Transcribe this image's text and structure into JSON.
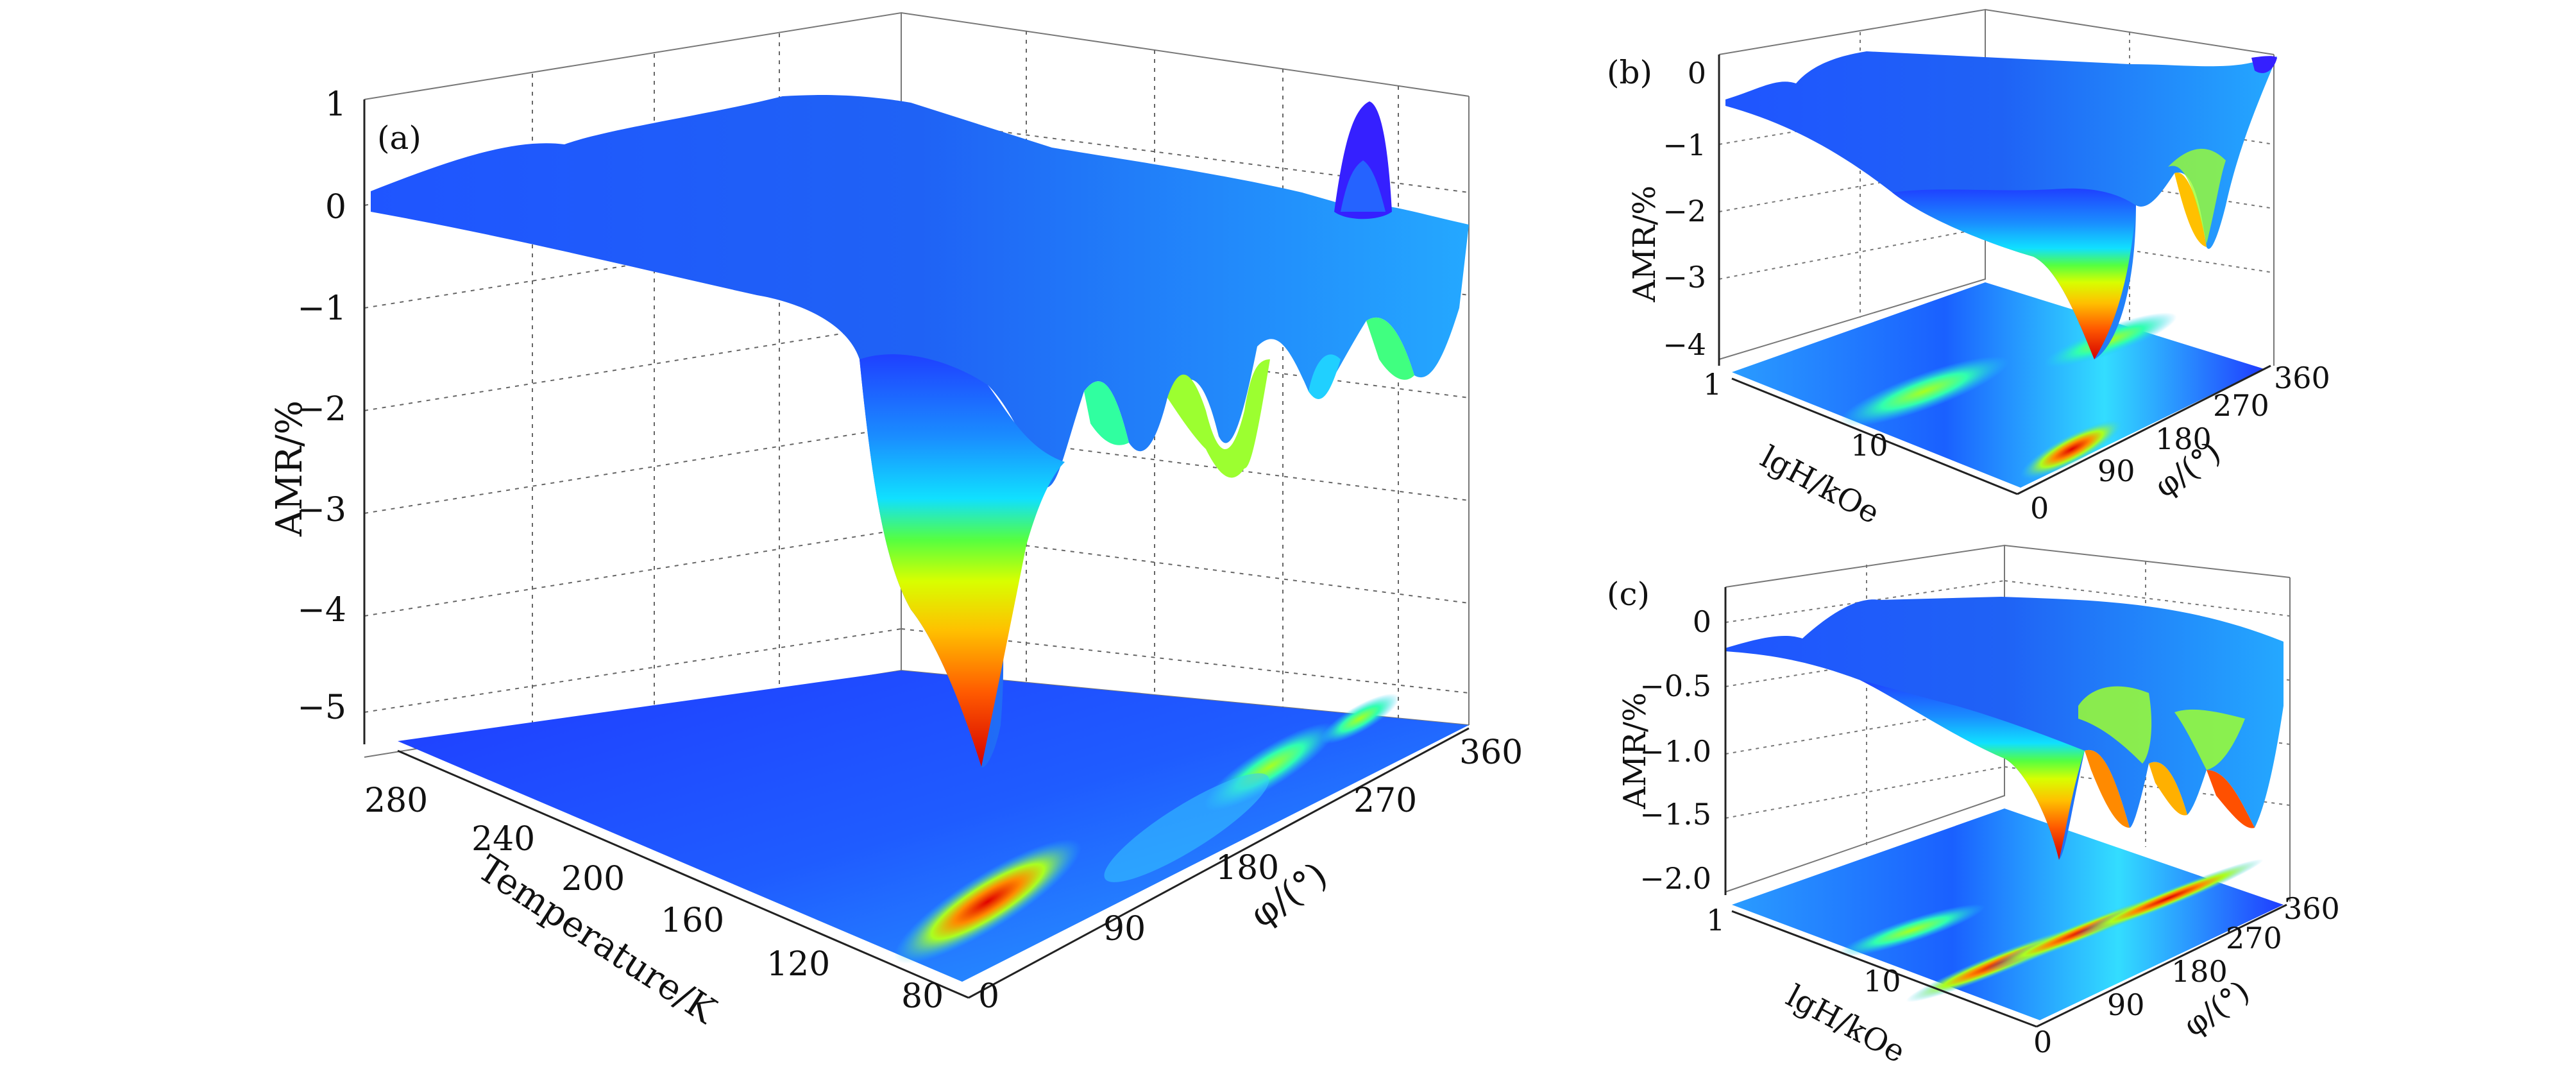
{
  "chart_data": [
    {
      "panel": "(a)",
      "type": "surface3d",
      "colormap": "jet",
      "zlabel": "AMR/%",
      "xlabel": "Temperature/K",
      "ylabel": "φ/(°)",
      "zlim": [
        -5.4,
        1
      ],
      "z_ticks": [
        "1",
        "0",
        "−1",
        "−2",
        "−3",
        "−4",
        "−5"
      ],
      "x_ticks": [
        "280",
        "240",
        "200",
        "160",
        "120",
        "80"
      ],
      "y_ticks": [
        "0",
        "90",
        "180",
        "270",
        "360"
      ],
      "projection": "filled contour on floor",
      "features": [
        {
          "description": "deep minimum",
          "temperature": 80,
          "phi": 100,
          "AMR": -5.4
        },
        {
          "description": "minimum",
          "temperature": 80,
          "phi": 200,
          "AMR": -2.6
        },
        {
          "description": "minimum",
          "temperature": 80,
          "phi": 280,
          "AMR": -2.0
        },
        {
          "description": "maximum",
          "temperature": 80,
          "phi": 310,
          "AMR": 1.0
        },
        {
          "description": "plateau",
          "temperature": 280,
          "phi": 0,
          "AMR": 0.2
        }
      ]
    },
    {
      "panel": "(b)",
      "type": "surface3d",
      "colormap": "jet",
      "zlabel": "AMR/%",
      "xlabel": "lgH/kOe",
      "ylabel": "φ/(°)",
      "zlim": [
        -4.3,
        0.3
      ],
      "z_ticks": [
        "0",
        "−1",
        "−2",
        "−3",
        "−4"
      ],
      "x_ticks": [
        "1",
        "10"
      ],
      "y_ticks": [
        "0",
        "90",
        "180",
        "270",
        "360"
      ],
      "features": [
        {
          "description": "deep minimum",
          "H": 50,
          "phi": 120,
          "AMR": -4.3
        },
        {
          "description": "minimum",
          "H": 50,
          "phi": 300,
          "AMR": -2.6
        }
      ]
    },
    {
      "panel": "(c)",
      "type": "surface3d",
      "colormap": "jet",
      "zlabel": "AMR/%",
      "xlabel": "lgH/kOe",
      "ylabel": "φ/(°)",
      "zlim": [
        -2.1,
        0.1
      ],
      "z_ticks": [
        "0",
        "−0.5",
        "−1.0",
        "−1.5",
        "−2.0"
      ],
      "x_ticks": [
        "1",
        "10"
      ],
      "y_ticks": [
        "0",
        "90",
        "180",
        "270",
        "360"
      ],
      "features": [
        {
          "description": "minimum",
          "H": 50,
          "phi": 90,
          "AMR": -2.0
        },
        {
          "description": "minimum",
          "H": 50,
          "phi": 180,
          "AMR": -1.9
        },
        {
          "description": "minimum",
          "H": 50,
          "phi": 270,
          "AMR": -1.9
        },
        {
          "description": "minimum",
          "H": 50,
          "phi": 330,
          "AMR": -1.8
        }
      ]
    }
  ],
  "colors": {
    "low": "#d40000",
    "mid_low": "#ffb000",
    "mid": "#cfff00",
    "mid_high": "#1fd0ff",
    "high": "#1f4fff",
    "peak": "#3a00ff",
    "axis": "#222222",
    "grid": "#555555"
  }
}
